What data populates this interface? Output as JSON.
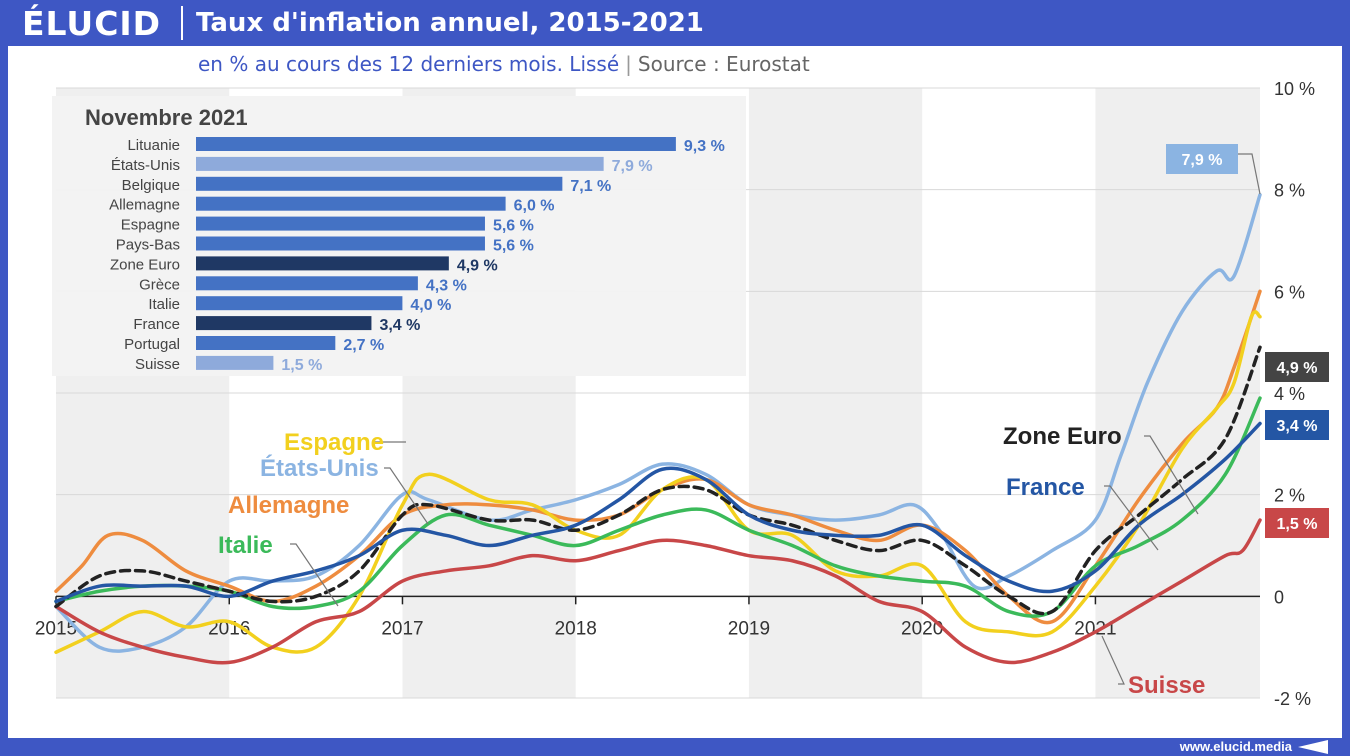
{
  "header": {
    "logo": "ÉLUCID",
    "title": "Taux d'inflation annuel, 2015-2021"
  },
  "subtitle": {
    "text": "en % au cours des 12 derniers mois. Lissé",
    "separator": "|",
    "source": "Source : Eurostat"
  },
  "footer": {
    "site": "www.elucid.media"
  },
  "colors": {
    "brand": "#3e57c4",
    "france": "#2456a4",
    "zone_euro": "#222222",
    "etats_unis": "#8bb4e2",
    "allemagne": "#ee8c3f",
    "espagne": "#f2d01e",
    "italie": "#3bba5a",
    "suisse": "#c84748",
    "bar": "#4472c4",
    "bar_light": "#8eaadb",
    "bar_dark": "#1f3864"
  },
  "chart_data": [
    {
      "type": "line",
      "ylim": [
        -2,
        10
      ],
      "yticks": [
        "10 %",
        "8 %",
        "6 %",
        "4 %",
        "2 %",
        "0",
        "-2 %"
      ],
      "ytick_values": [
        10,
        8,
        6,
        4,
        2,
        0,
        -2
      ],
      "xlim": [
        2015,
        2021.95
      ],
      "xticks": [
        "2015",
        "2016",
        "2017",
        "2018",
        "2019",
        "2020",
        "2021"
      ],
      "xtick_values": [
        2015,
        2016,
        2017,
        2018,
        2019,
        2020,
        2021
      ],
      "series": [
        {
          "name": "États-Unis",
          "key": "etats_unis",
          "label_color": "#8bb4e2",
          "end_label": "7,9 %",
          "x": [
            2015,
            2015.25,
            2015.5,
            2015.75,
            2016,
            2016.25,
            2016.5,
            2016.75,
            2017,
            2017.15,
            2017.5,
            2017.75,
            2018,
            2018.25,
            2018.5,
            2018.75,
            2019,
            2019.25,
            2019.5,
            2019.75,
            2019.95,
            2020.1,
            2020.3,
            2020.5,
            2020.75,
            2021,
            2021.15,
            2021.3,
            2021.5,
            2021.7,
            2021.8,
            2021.95
          ],
          "y": [
            -0.2,
            -1.0,
            -1.0,
            -0.6,
            0.3,
            0.3,
            0.4,
            1.0,
            2.0,
            1.9,
            1.5,
            1.7,
            1.9,
            2.2,
            2.6,
            2.4,
            1.8,
            1.6,
            1.5,
            1.6,
            1.8,
            1.3,
            0.2,
            0.4,
            0.9,
            1.5,
            2.8,
            4.2,
            5.6,
            6.4,
            6.3,
            7.9
          ]
        },
        {
          "name": "Allemagne",
          "key": "allemagne",
          "label_color": "#ee8c3f",
          "x": [
            2015,
            2015.15,
            2015.3,
            2015.5,
            2015.75,
            2016,
            2016.25,
            2016.5,
            2016.75,
            2017,
            2017.25,
            2017.5,
            2017.75,
            2018,
            2018.25,
            2018.5,
            2018.75,
            2019,
            2019.25,
            2019.5,
            2019.75,
            2020,
            2020.25,
            2020.5,
            2020.75,
            2021,
            2021.25,
            2021.5,
            2021.7,
            2021.8,
            2021.95
          ],
          "y": [
            0.1,
            0.6,
            1.2,
            1.1,
            0.5,
            0.2,
            -0.1,
            0.2,
            0.8,
            1.6,
            1.8,
            1.8,
            1.7,
            1.5,
            1.6,
            2.1,
            2.3,
            1.8,
            1.6,
            1.3,
            1.1,
            1.4,
            0.9,
            0.0,
            -0.5,
            0.6,
            1.9,
            3.0,
            3.7,
            4.5,
            6.0
          ]
        },
        {
          "name": "Espagne",
          "key": "espagne",
          "label_color": "#f2d01e",
          "x": [
            2015,
            2015.25,
            2015.5,
            2015.75,
            2016,
            2016.25,
            2016.5,
            2016.75,
            2017,
            2017.15,
            2017.5,
            2017.75,
            2018,
            2018.25,
            2018.5,
            2018.75,
            2019,
            2019.25,
            2019.5,
            2019.75,
            2020,
            2020.25,
            2020.5,
            2020.75,
            2021,
            2021.25,
            2021.5,
            2021.7,
            2021.8,
            2021.9,
            2021.95
          ],
          "y": [
            -1.1,
            -0.7,
            -0.3,
            -0.6,
            -0.5,
            -1.0,
            -1.0,
            0.0,
            1.8,
            2.4,
            1.9,
            1.8,
            1.3,
            1.2,
            2.1,
            2.3,
            1.3,
            1.2,
            0.5,
            0.4,
            0.6,
            -0.5,
            -0.7,
            -0.7,
            0.2,
            1.4,
            2.9,
            3.7,
            4.2,
            5.5,
            5.5
          ]
        },
        {
          "name": "Italie",
          "key": "italie",
          "label_color": "#3bba5a",
          "x": [
            2015,
            2015.25,
            2015.5,
            2015.75,
            2016,
            2016.25,
            2016.5,
            2016.75,
            2017,
            2017.25,
            2017.5,
            2017.75,
            2018,
            2018.25,
            2018.5,
            2018.75,
            2019,
            2019.25,
            2019.5,
            2019.75,
            2020,
            2020.25,
            2020.5,
            2020.75,
            2021,
            2021.25,
            2021.5,
            2021.75,
            2021.95
          ],
          "y": [
            -0.1,
            0.1,
            0.2,
            0.2,
            0.1,
            -0.2,
            -0.2,
            0.1,
            1.0,
            1.6,
            1.4,
            1.2,
            1.0,
            1.3,
            1.6,
            1.7,
            1.3,
            1.0,
            0.6,
            0.4,
            0.3,
            0.2,
            -0.3,
            -0.3,
            0.6,
            1.0,
            1.5,
            2.4,
            3.9
          ]
        },
        {
          "name": "Suisse",
          "key": "suisse",
          "label_color": "#c84748",
          "end_label": "1,5 %",
          "x": [
            2015,
            2015.25,
            2015.5,
            2015.75,
            2016,
            2016.25,
            2016.5,
            2016.75,
            2017,
            2017.25,
            2017.5,
            2017.75,
            2018,
            2018.25,
            2018.5,
            2018.75,
            2019,
            2019.25,
            2019.5,
            2019.75,
            2020,
            2020.25,
            2020.5,
            2020.75,
            2021,
            2021.25,
            2021.5,
            2021.75,
            2021.85,
            2021.95
          ],
          "y": [
            -0.2,
            -0.7,
            -1.0,
            -1.2,
            -1.3,
            -1.0,
            -0.5,
            -0.3,
            0.3,
            0.5,
            0.6,
            0.8,
            0.7,
            0.9,
            1.1,
            1.0,
            0.8,
            0.7,
            0.4,
            -0.1,
            -0.3,
            -1.0,
            -1.3,
            -1.1,
            -0.7,
            -0.2,
            0.3,
            0.8,
            0.9,
            1.5
          ]
        },
        {
          "name": "Zone Euro",
          "key": "zone_euro",
          "label_color": "#222222",
          "end_label": "4,9 %",
          "dashed": true,
          "x": [
            2015,
            2015.25,
            2015.5,
            2015.75,
            2016,
            2016.25,
            2016.5,
            2016.75,
            2017,
            2017.15,
            2017.5,
            2017.75,
            2018,
            2018.25,
            2018.5,
            2018.75,
            2019,
            2019.25,
            2019.5,
            2019.75,
            2020,
            2020.25,
            2020.5,
            2020.75,
            2021,
            2021.25,
            2021.5,
            2021.75,
            2021.95
          ],
          "y": [
            -0.2,
            0.4,
            0.5,
            0.3,
            0.1,
            -0.1,
            0.0,
            0.5,
            1.6,
            1.8,
            1.5,
            1.5,
            1.3,
            1.6,
            2.1,
            2.1,
            1.6,
            1.4,
            1.1,
            0.9,
            1.1,
            0.6,
            0.0,
            -0.3,
            0.9,
            1.6,
            2.3,
            3.1,
            4.9
          ]
        },
        {
          "name": "France",
          "key": "france",
          "label_color": "#2456a4",
          "end_label": "3,4 %",
          "x": [
            2015,
            2015.25,
            2015.5,
            2015.75,
            2016,
            2016.25,
            2016.5,
            2016.75,
            2017,
            2017.25,
            2017.5,
            2017.75,
            2018,
            2018.25,
            2018.5,
            2018.75,
            2019,
            2019.25,
            2019.5,
            2019.75,
            2020,
            2020.25,
            2020.5,
            2020.75,
            2021,
            2021.25,
            2021.5,
            2021.75,
            2021.95
          ],
          "y": [
            -0.1,
            0.2,
            0.2,
            0.2,
            0.0,
            0.3,
            0.5,
            0.8,
            1.3,
            1.2,
            1.0,
            1.2,
            1.4,
            1.9,
            2.5,
            2.3,
            1.6,
            1.3,
            1.2,
            1.2,
            1.4,
            0.8,
            0.3,
            0.1,
            0.5,
            1.4,
            2.0,
            2.7,
            3.4
          ]
        }
      ]
    },
    {
      "type": "bar",
      "title": "Novembre 2021",
      "categories": [
        "Lituanie",
        "États-Unis",
        "Belgique",
        "Allemagne",
        "Espagne",
        "Pays-Bas",
        "Zone Euro",
        "Grèce",
        "Italie",
        "France",
        "Portugal",
        "Suisse"
      ],
      "values": [
        9.3,
        7.9,
        7.1,
        6.0,
        5.6,
        5.6,
        4.9,
        4.3,
        4.0,
        3.4,
        2.7,
        1.5
      ],
      "labels": [
        "9,3 %",
        "7,9 %",
        "7,1 %",
        "6,0 %",
        "5,6 %",
        "5,6 %",
        "4,9 %",
        "4,3 %",
        "4,0 %",
        "3,4 %",
        "2,7 %",
        "1,5 %"
      ],
      "bar_colors": [
        "#4472c4",
        "#8eaadb",
        "#4472c4",
        "#4472c4",
        "#4472c4",
        "#4472c4",
        "#1f3864",
        "#4472c4",
        "#4472c4",
        "#1f3864",
        "#4472c4",
        "#8eaadb"
      ],
      "label_colors": [
        "#4472c4",
        "#8eaadb",
        "#4472c4",
        "#4472c4",
        "#4472c4",
        "#4472c4",
        "#1f3864",
        "#4472c4",
        "#4472c4",
        "#1f3864",
        "#4472c4",
        "#8eaadb"
      ]
    }
  ]
}
